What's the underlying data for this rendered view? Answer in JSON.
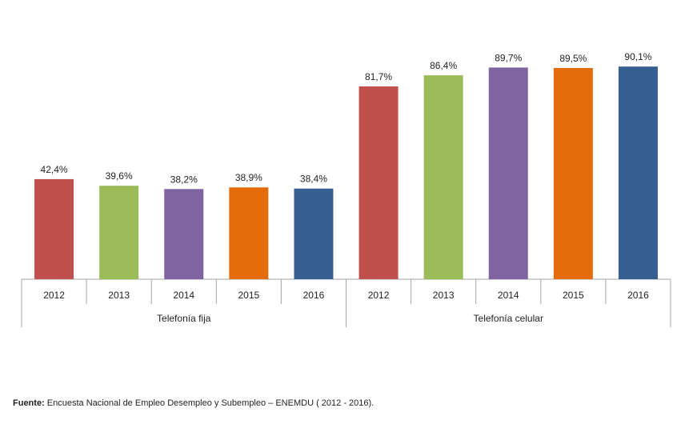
{
  "chart_data": {
    "type": "bar",
    "groups": [
      {
        "label": "Telefonía fija",
        "categories": [
          "2012",
          "2013",
          "2014",
          "2015",
          "2016"
        ],
        "values": [
          42.4,
          39.6,
          38.2,
          38.9,
          38.4
        ],
        "value_labels": [
          "42,4%",
          "39,6%",
          "38,2%",
          "38,9%",
          "38,4%"
        ]
      },
      {
        "label": "Telefonía celular",
        "categories": [
          "2012",
          "2013",
          "2014",
          "2015",
          "2016"
        ],
        "values": [
          81.7,
          86.4,
          89.7,
          89.5,
          90.1
        ],
        "value_labels": [
          "81,7%",
          "86,4%",
          "89,7%",
          "89,5%",
          "90,1%"
        ]
      }
    ],
    "colors": [
      "#c0504d",
      "#9bbb59",
      "#8064a2",
      "#e46c0a",
      "#365f91"
    ],
    "ylim": [
      0,
      100
    ],
    "grid": false,
    "legend": "none"
  },
  "source": {
    "label": "Fuente:",
    "text": " Encuesta Nacional de Empleo Desempleo y Subempleo – ENEMDU ( 2012 - 2016)."
  }
}
